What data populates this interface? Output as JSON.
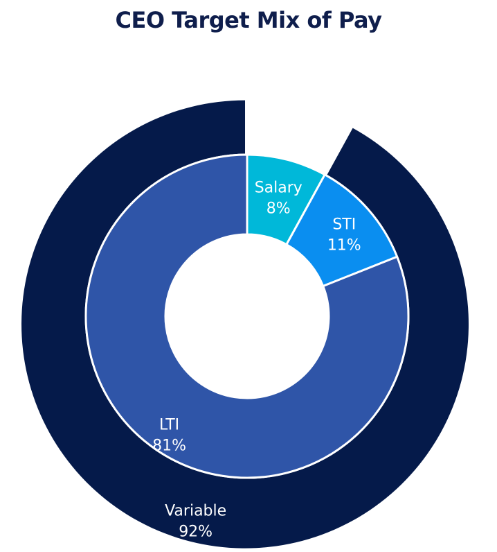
{
  "chart_data": {
    "type": "pie",
    "title": "CEO Target Mix of Pay",
    "inner_ring": [
      {
        "label": "Salary",
        "value": 8,
        "value_label": "8%",
        "color": "#00b8d9"
      },
      {
        "label": "STI",
        "value": 11,
        "value_label": "11%",
        "color": "#0a8ef0"
      },
      {
        "label": "LTI",
        "value": 81,
        "value_label": "81%",
        "color": "#2f55a8"
      }
    ],
    "outer_ring": [
      {
        "label": "Variable",
        "value": 92,
        "value_label": "92%",
        "color": "#051a4a",
        "exploded": true
      }
    ]
  },
  "colors": {
    "title": "#0f1e4c",
    "label": "#ffffff",
    "divider": "#ffffff"
  }
}
